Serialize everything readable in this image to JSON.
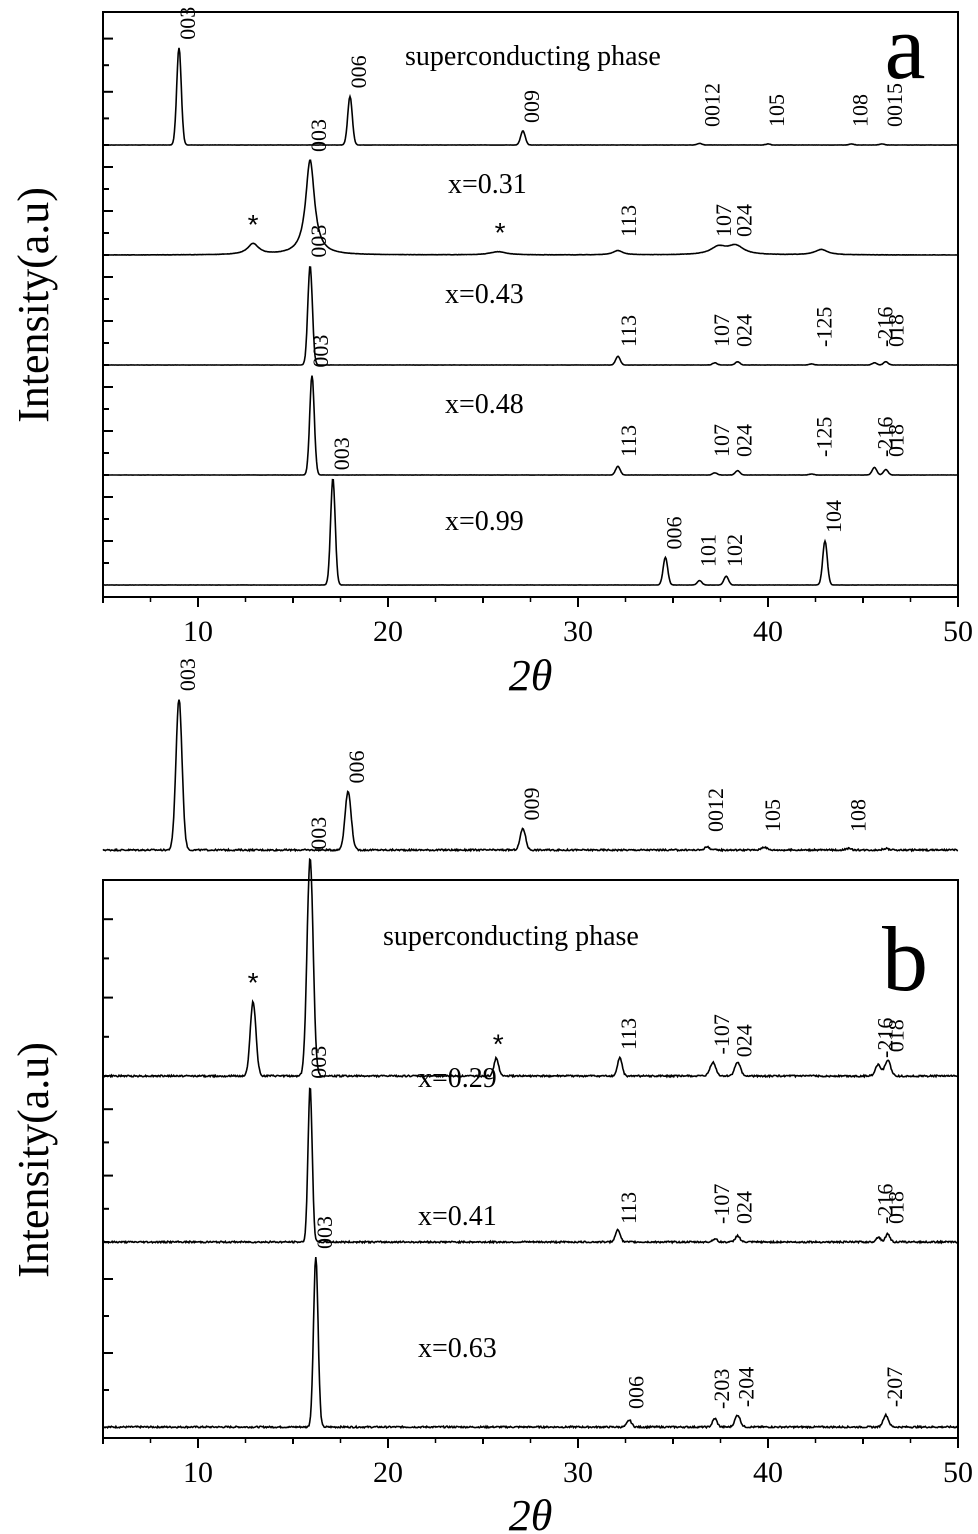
{
  "chart_data": [
    {
      "type": "line",
      "panel_label": "a",
      "xlabel": "2θ",
      "ylabel": "Intensity(a.u)",
      "xlim": [
        5,
        50
      ],
      "xticks": [
        10,
        20,
        30,
        40,
        50
      ],
      "grid": false,
      "series": [
        {
          "label": "superconducting phase",
          "peaks": [
            {
              "x": 9.0,
              "h": 0.9,
              "w": 0.12
            },
            {
              "x": 18.0,
              "h": 0.45,
              "w": 0.12
            },
            {
              "x": 27.1,
              "h": 0.13,
              "w": 0.12
            },
            {
              "x": 36.4,
              "h": 0.015,
              "w": 0.12
            },
            {
              "x": 40.0,
              "h": 0.01,
              "w": 0.12
            },
            {
              "x": 44.4,
              "h": 0.01,
              "w": 0.12
            },
            {
              "x": 46.0,
              "h": 0.01,
              "w": 0.12
            }
          ],
          "annotations": [
            {
              "text": "003",
              "x": 9.0
            },
            {
              "text": "006",
              "x": 18.0
            },
            {
              "text": "009",
              "x": 27.1
            },
            {
              "text": "0012",
              "x": 36.6
            },
            {
              "text": "105",
              "x": 40.0
            },
            {
              "text": "108",
              "x": 44.4
            },
            {
              "text": "0015",
              "x": 46.2
            }
          ]
        },
        {
          "label": "x=0.31",
          "peaks": [
            {
              "x": 12.9,
              "h": 0.1,
              "w": 0.35
            },
            {
              "x": 15.9,
              "h": 0.88,
              "w": 0.28
            },
            {
              "x": 25.8,
              "h": 0.03,
              "w": 0.5
            },
            {
              "x": 32.1,
              "h": 0.04,
              "w": 0.3
            },
            {
              "x": 37.4,
              "h": 0.07,
              "w": 0.5
            },
            {
              "x": 38.3,
              "h": 0.08,
              "w": 0.5
            },
            {
              "x": 42.8,
              "h": 0.05,
              "w": 0.4
            }
          ],
          "annotations": [
            {
              "text": "*",
              "x": 12.9
            },
            {
              "text": "003",
              "x": 15.9
            },
            {
              "text": "*",
              "x": 25.9
            },
            {
              "text": "113",
              "x": 32.2
            },
            {
              "text": "107",
              "x": 37.2
            },
            {
              "text": "024",
              "x": 38.3
            }
          ]
        },
        {
          "label": "x=0.43",
          "peaks": [
            {
              "x": 15.9,
              "h": 0.92,
              "w": 0.12
            },
            {
              "x": 32.1,
              "h": 0.08,
              "w": 0.12
            },
            {
              "x": 37.2,
              "h": 0.02,
              "w": 0.12
            },
            {
              "x": 38.4,
              "h": 0.03,
              "w": 0.12
            },
            {
              "x": 42.3,
              "h": 0.01,
              "w": 0.12
            },
            {
              "x": 45.6,
              "h": 0.02,
              "w": 0.12
            },
            {
              "x": 46.2,
              "h": 0.03,
              "w": 0.12
            }
          ],
          "annotations": [
            {
              "text": "003",
              "x": 15.9
            },
            {
              "text": "113",
              "x": 32.2
            },
            {
              "text": "107",
              "x": 37.1
            },
            {
              "text": "024",
              "x": 38.3
            },
            {
              "text": "-125",
              "x": 42.5
            },
            {
              "text": "-216",
              "x": 45.7
            },
            {
              "text": "018",
              "x": 46.3
            }
          ]
        },
        {
          "label": "x=0.48",
          "peaks": [
            {
              "x": 16.0,
              "h": 0.92,
              "w": 0.12
            },
            {
              "x": 32.1,
              "h": 0.08,
              "w": 0.12
            },
            {
              "x": 37.2,
              "h": 0.02,
              "w": 0.12
            },
            {
              "x": 38.4,
              "h": 0.04,
              "w": 0.12
            },
            {
              "x": 42.3,
              "h": 0.01,
              "w": 0.12
            },
            {
              "x": 45.6,
              "h": 0.07,
              "w": 0.12
            },
            {
              "x": 46.2,
              "h": 0.05,
              "w": 0.12
            }
          ],
          "annotations": [
            {
              "text": "003",
              "x": 16.0
            },
            {
              "text": "113",
              "x": 32.2
            },
            {
              "text": "107",
              "x": 37.1
            },
            {
              "text": "024",
              "x": 38.3
            },
            {
              "text": "-125",
              "x": 42.5
            },
            {
              "text": "-216",
              "x": 45.7
            },
            {
              "text": "018",
              "x": 46.3
            }
          ]
        },
        {
          "label": "x=0.99",
          "peaks": [
            {
              "x": 17.1,
              "h": 0.97,
              "w": 0.12
            },
            {
              "x": 34.6,
              "h": 0.25,
              "w": 0.12
            },
            {
              "x": 36.4,
              "h": 0.04,
              "w": 0.12
            },
            {
              "x": 37.8,
              "h": 0.08,
              "w": 0.12
            },
            {
              "x": 43.0,
              "h": 0.4,
              "w": 0.12
            }
          ],
          "annotations": [
            {
              "text": "003",
              "x": 17.1
            },
            {
              "text": "006",
              "x": 34.6
            },
            {
              "text": "101",
              "x": 36.4
            },
            {
              "text": "102",
              "x": 37.8
            },
            {
              "text": "104",
              "x": 43.0
            }
          ]
        }
      ]
    },
    {
      "type": "line",
      "panel_label": "b",
      "xlabel": "2θ",
      "ylabel": "Intensity(a.u)",
      "xlim": [
        5,
        50
      ],
      "xticks": [
        10,
        20,
        30,
        40,
        50
      ],
      "grid": false,
      "series": [
        {
          "label": "superconducting phase",
          "peaks": [
            {
              "x": 9.0,
              "h": 0.98,
              "w": 0.16
            },
            {
              "x": 17.9,
              "h": 0.38,
              "w": 0.16
            },
            {
              "x": 27.1,
              "h": 0.14,
              "w": 0.14
            },
            {
              "x": 36.8,
              "h": 0.02,
              "w": 0.14
            },
            {
              "x": 39.8,
              "h": 0.02,
              "w": 0.14
            },
            {
              "x": 44.2,
              "h": 0.01,
              "w": 0.14
            },
            {
              "x": 46.2,
              "h": 0.01,
              "w": 0.14
            }
          ],
          "annotations": [
            {
              "text": "003",
              "x": 9.0
            },
            {
              "text": "006",
              "x": 17.9
            },
            {
              "text": "009",
              "x": 27.1
            },
            {
              "text": "0012",
              "x": 36.8
            },
            {
              "text": "105",
              "x": 39.8
            },
            {
              "text": "108",
              "x": 44.3
            }
          ]
        },
        {
          "label": "x=0.29",
          "peaks": [
            {
              "x": 12.9,
              "h": 0.33,
              "w": 0.15
            },
            {
              "x": 15.9,
              "h": 0.97,
              "w": 0.16
            },
            {
              "x": 25.7,
              "h": 0.08,
              "w": 0.12
            },
            {
              "x": 32.2,
              "h": 0.08,
              "w": 0.12
            },
            {
              "x": 37.1,
              "h": 0.06,
              "w": 0.15
            },
            {
              "x": 38.4,
              "h": 0.06,
              "w": 0.15
            },
            {
              "x": 45.8,
              "h": 0.05,
              "w": 0.15
            },
            {
              "x": 46.3,
              "h": 0.07,
              "w": 0.15
            }
          ],
          "annotations": [
            {
              "text": "*",
              "x": 12.9
            },
            {
              "text": "003",
              "x": 15.9
            },
            {
              "text": "*",
              "x": 25.8
            },
            {
              "text": "113",
              "x": 32.2
            },
            {
              "text": "-107",
              "x": 37.1
            },
            {
              "text": "024",
              "x": 38.3
            },
            {
              "text": "-216",
              "x": 45.7
            },
            {
              "text": "018",
              "x": 46.3
            }
          ]
        },
        {
          "label": "x=0.41",
          "peaks": [
            {
              "x": 15.9,
              "h": 0.97,
              "w": 0.11
            },
            {
              "x": 32.1,
              "h": 0.08,
              "w": 0.12
            },
            {
              "x": 37.2,
              "h": 0.02,
              "w": 0.12
            },
            {
              "x": 38.4,
              "h": 0.04,
              "w": 0.12
            },
            {
              "x": 45.8,
              "h": 0.03,
              "w": 0.12
            },
            {
              "x": 46.3,
              "h": 0.05,
              "w": 0.12
            }
          ],
          "annotations": [
            {
              "text": "003",
              "x": 15.9
            },
            {
              "text": "113",
              "x": 32.2
            },
            {
              "text": "-107",
              "x": 37.1
            },
            {
              "text": "024",
              "x": 38.3
            },
            {
              "text": "-216",
              "x": 45.7
            },
            {
              "text": "018",
              "x": 46.3
            }
          ]
        },
        {
          "label": "x=0.63",
          "peaks": [
            {
              "x": 16.2,
              "h": 1.0,
              "w": 0.12
            },
            {
              "x": 32.7,
              "h": 0.04,
              "w": 0.12
            },
            {
              "x": 37.2,
              "h": 0.05,
              "w": 0.12
            },
            {
              "x": 38.4,
              "h": 0.07,
              "w": 0.14
            },
            {
              "x": 46.2,
              "h": 0.07,
              "w": 0.14
            }
          ],
          "annotations": [
            {
              "text": "003",
              "x": 16.2
            },
            {
              "text": "006",
              "x": 32.6
            },
            {
              "text": "-203",
              "x": 37.1
            },
            {
              "text": "-204",
              "x": 38.4
            },
            {
              "text": "-207",
              "x": 46.2
            }
          ]
        }
      ]
    }
  ]
}
